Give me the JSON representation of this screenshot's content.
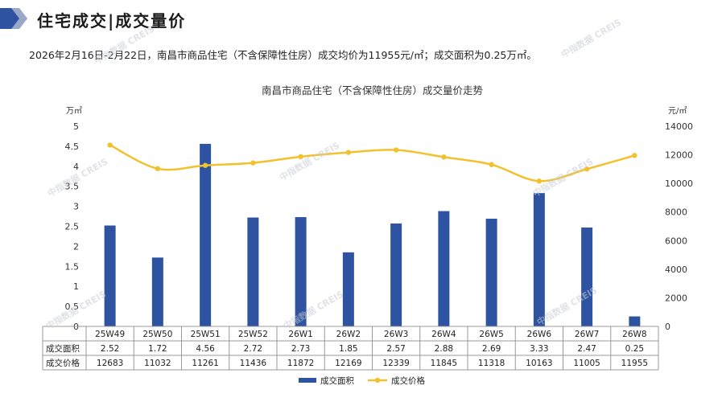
{
  "header": {
    "title": "住宅成交|成交量价"
  },
  "summary": "2026年2月16日-2月22日，南昌市商品住宅（不含保障性住房）成交均价为11955元/㎡；成交面积为0.25万㎡。",
  "watermark_text": "中指数据 CREIS",
  "chart_data": {
    "type": "bar+line",
    "title": "南昌市商品住宅（不含保障性住房）成交量价走势",
    "categories": [
      "25W49",
      "25W50",
      "25W51",
      "25W52",
      "26W1",
      "26W2",
      "26W3",
      "26W4",
      "26W5",
      "26W6",
      "26W7",
      "26W8"
    ],
    "series": [
      {
        "name": "成交面积",
        "type": "bar",
        "axis": "left",
        "color": "#2E54A1",
        "values": [
          2.52,
          1.72,
          4.56,
          2.72,
          2.73,
          1.85,
          2.57,
          2.88,
          2.69,
          3.33,
          2.47,
          0.25
        ]
      },
      {
        "name": "成交价格",
        "type": "line",
        "axis": "right",
        "color": "#F2C12E",
        "values": [
          12683,
          11032,
          11261,
          11436,
          11872,
          12169,
          12339,
          11845,
          11318,
          10163,
          11005,
          11955
        ]
      }
    ],
    "y_left": {
      "unit": "万㎡",
      "min": 0,
      "max": 5,
      "ticks": [
        "0",
        "0.5",
        "1",
        "1.5",
        "2",
        "2.5",
        "3",
        "3.5",
        "4",
        "4.5",
        "5"
      ]
    },
    "y_right": {
      "unit": "元/㎡",
      "min": 0,
      "max": 14000,
      "ticks": [
        "0",
        "2000",
        "4000",
        "6000",
        "8000",
        "10000",
        "12000",
        "14000"
      ]
    },
    "table_rows": [
      {
        "label": "成交面积",
        "values": [
          "2.52",
          "1.72",
          "4.56",
          "2.72",
          "2.73",
          "1.85",
          "2.57",
          "2.88",
          "2.69",
          "3.33",
          "2.47",
          "0.25"
        ]
      },
      {
        "label": "成交价格",
        "values": [
          "12683",
          "11032",
          "11261",
          "11436",
          "11872",
          "12169",
          "12339",
          "11845",
          "11318",
          "10163",
          "11005",
          "11955"
        ]
      }
    ],
    "legend": [
      "成交面积",
      "成交价格"
    ],
    "legend_position": "bottom",
    "grid": false
  }
}
